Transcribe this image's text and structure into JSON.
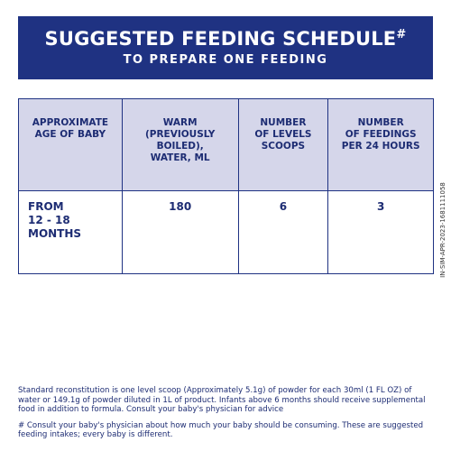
{
  "header": {
    "title": "SUGGESTED FEEDING SCHEDULE",
    "title_mark": "#",
    "subtitle": "TO PREPARE ONE FEEDING"
  },
  "table": {
    "headers": [
      [
        "APPROXIMATE",
        "AGE OF BABY"
      ],
      [
        "WARM",
        "(PREVIOUSLY BOILED),",
        "WATER, ML"
      ],
      [
        "NUMBER",
        "OF LEVELS",
        "SCOOPS"
      ],
      [
        "NUMBER",
        "OF FEEDINGS",
        "PER 24 HOURS"
      ]
    ],
    "rows": [
      [
        [
          "FROM",
          "12 - 18 MONTHS"
        ],
        [
          "180"
        ],
        [
          "6"
        ],
        [
          "3"
        ]
      ]
    ]
  },
  "side_code": "IN-SIM-APR-2023-1681111058",
  "footnotes": [
    "Standard reconstitution is one level scoop (Approximately 5.1g) of powder for each 30ml (1 FL OZ) of water or 149.1g of powder diluted in 1L of product. Infants above 6 months should receive supplemental food in addition to formula. Consult your baby's physician for advice",
    "# Consult your baby's physician about how much your baby should be consuming. These are suggested feeding intakes; every baby is different."
  ]
}
